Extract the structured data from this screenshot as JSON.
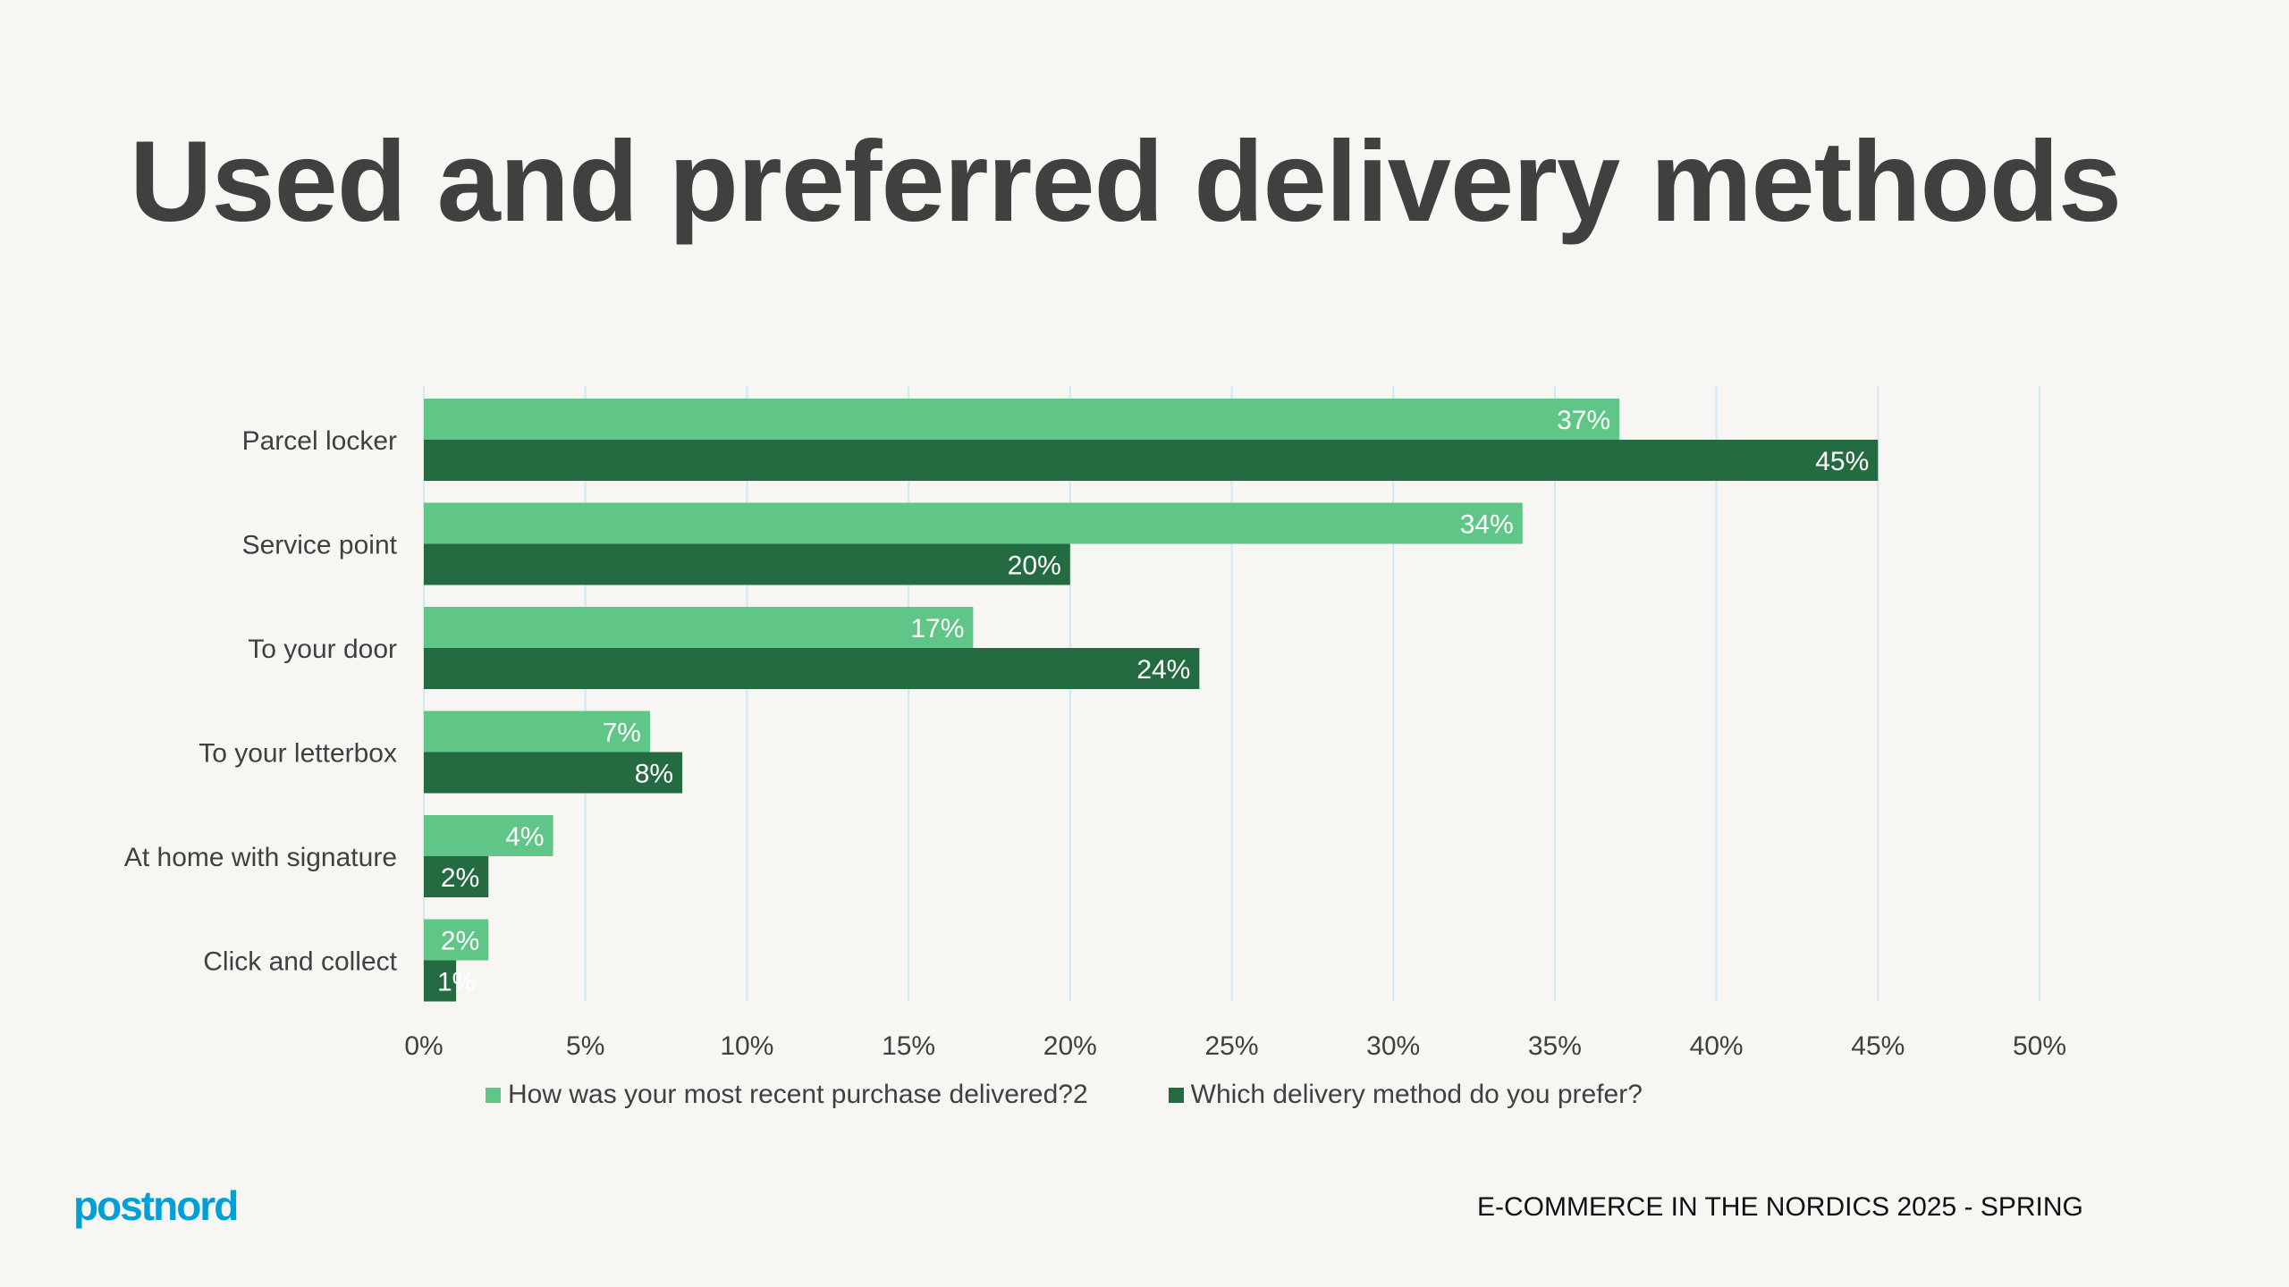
{
  "title": "Used and preferred delivery methods",
  "footer": "E-COMMERCE IN THE NORDICS 2025 - SPRING",
  "logo": "postnord",
  "colors": {
    "series1": "#5fc687",
    "series2": "#256b41",
    "grid": "#cfe8f5",
    "logo": "#00a0d6",
    "background": "#f7f6f2"
  },
  "chart_data": {
    "type": "bar",
    "orientation": "horizontal",
    "categories": [
      "Parcel locker",
      "Service point",
      "To your door",
      "To your letterbox",
      "At home with signature",
      "Click and collect"
    ],
    "series": [
      {
        "name": "How was your most recent purchase delivered?2",
        "values": [
          37,
          34,
          17,
          7,
          4,
          2
        ],
        "labels": [
          "37%",
          "34%",
          "17%",
          "7%",
          "4%",
          "2%"
        ]
      },
      {
        "name": "Which delivery method do you prefer?",
        "values": [
          45,
          20,
          24,
          8,
          2,
          1
        ],
        "labels": [
          "45%",
          "20%",
          "24%",
          "8%",
          "2%",
          "1%"
        ]
      }
    ],
    "xlim": [
      0,
      50
    ],
    "xticks": [
      "0%",
      "5%",
      "10%",
      "15%",
      "20%",
      "25%",
      "30%",
      "35%",
      "40%",
      "45%",
      "50%"
    ],
    "grid": true,
    "legend_position": "bottom"
  }
}
